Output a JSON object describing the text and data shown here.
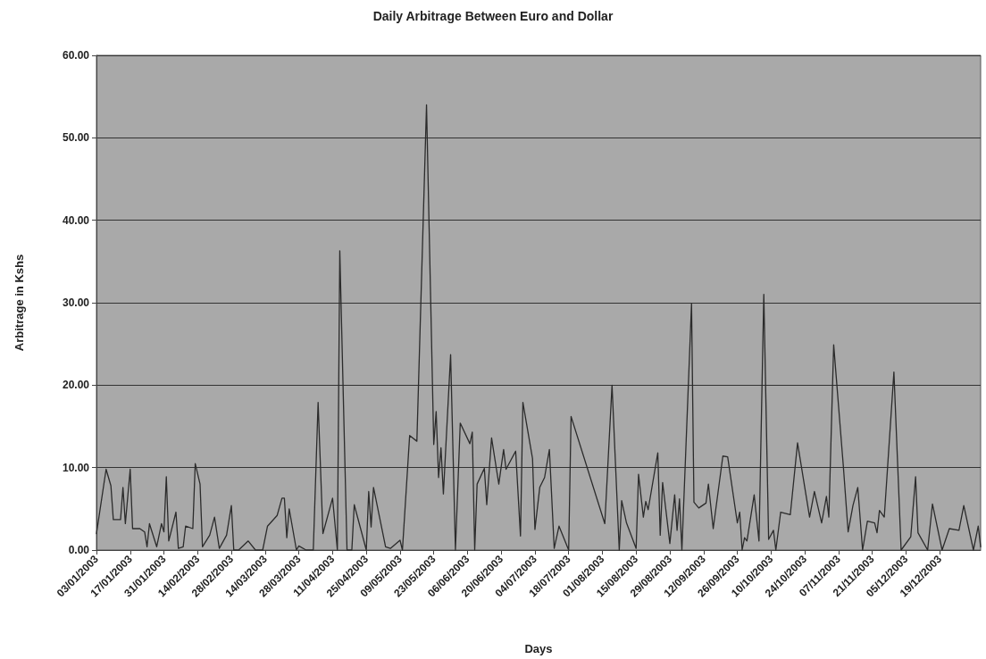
{
  "chart_data": {
    "type": "line",
    "title": "Daily Arbitrage Between Euro and Dollar",
    "xlabel": "Days",
    "ylabel": "Arbitrage in Kshs",
    "x": [
      "2003-01-03",
      "2003-01-07",
      "2003-01-09",
      "2003-01-10",
      "2003-01-13",
      "2003-01-14",
      "2003-01-15",
      "2003-01-17",
      "2003-01-18",
      "2003-01-21",
      "2003-01-23",
      "2003-01-24",
      "2003-01-25",
      "2003-01-28",
      "2003-01-30",
      "2003-01-31",
      "2003-02-01",
      "2003-02-02",
      "2003-02-05",
      "2003-02-06",
      "2003-02-08",
      "2003-02-09",
      "2003-02-12",
      "2003-02-13",
      "2003-02-15",
      "2003-02-16",
      "2003-02-19",
      "2003-02-21",
      "2003-02-23",
      "2003-02-26",
      "2003-02-28",
      "2003-03-01",
      "2003-03-03",
      "2003-03-07",
      "2003-03-10",
      "2003-03-13",
      "2003-03-15",
      "2003-03-19",
      "2003-03-21",
      "2003-03-22",
      "2003-03-23",
      "2003-03-24",
      "2003-03-27",
      "2003-03-28",
      "2003-03-31",
      "2003-04-03",
      "2003-04-05",
      "2003-04-07",
      "2003-04-11",
      "2003-04-13",
      "2003-04-14",
      "2003-04-17",
      "2003-04-19",
      "2003-04-20",
      "2003-04-25",
      "2003-04-26",
      "2003-04-27",
      "2003-04-28",
      "2003-05-03",
      "2003-05-05",
      "2003-05-09",
      "2003-05-10",
      "2003-05-13",
      "2003-05-16",
      "2003-05-20",
      "2003-05-23",
      "2003-05-24",
      "2003-05-25",
      "2003-05-26",
      "2003-05-27",
      "2003-05-30",
      "2003-06-01",
      "2003-06-03",
      "2003-06-07",
      "2003-06-08",
      "2003-06-09",
      "2003-06-10",
      "2003-06-13",
      "2003-06-14",
      "2003-06-16",
      "2003-06-19",
      "2003-06-21",
      "2003-06-22",
      "2003-06-26",
      "2003-06-28",
      "2003-06-29",
      "2003-07-03",
      "2003-07-04",
      "2003-07-06",
      "2003-07-08",
      "2003-07-10",
      "2003-07-12",
      "2003-07-14",
      "2003-07-18",
      "2003-07-19",
      "2003-08-02",
      "2003-08-05",
      "2003-08-08",
      "2003-08-09",
      "2003-08-11",
      "2003-08-15",
      "2003-08-16",
      "2003-08-18",
      "2003-08-19",
      "2003-08-20",
      "2003-08-24",
      "2003-08-25",
      "2003-08-26",
      "2003-08-29",
      "2003-08-31",
      "2003-09-01",
      "2003-09-02",
      "2003-09-03",
      "2003-09-07",
      "2003-09-08",
      "2003-09-10",
      "2003-09-13",
      "2003-09-14",
      "2003-09-16",
      "2003-09-20",
      "2003-09-22",
      "2003-09-26",
      "2003-09-27",
      "2003-09-28",
      "2003-09-29",
      "2003-09-30",
      "2003-10-03",
      "2003-10-05",
      "2003-10-07",
      "2003-10-09",
      "2003-10-11",
      "2003-10-12",
      "2003-10-14",
      "2003-10-18",
      "2003-10-21",
      "2003-10-26",
      "2003-10-28",
      "2003-10-31",
      "2003-11-02",
      "2003-11-03",
      "2003-11-05",
      "2003-11-09",
      "2003-11-11",
      "2003-11-13",
      "2003-11-15",
      "2003-11-17",
      "2003-11-19",
      "2003-11-22",
      "2003-11-23",
      "2003-11-24",
      "2003-11-26",
      "2003-11-30",
      "2003-12-03",
      "2003-12-07",
      "2003-12-09",
      "2003-12-10",
      "2003-12-14",
      "2003-12-16",
      "2003-12-20",
      "2003-12-23",
      "2003-12-27",
      "2003-12-29",
      "2004-01-02",
      "2004-01-04",
      "2004-01-05"
    ],
    "series": [
      {
        "color": "#2b2b2b",
        "values": [
          2.0,
          9.8,
          7.8,
          3.7,
          3.7,
          7.6,
          3.2,
          9.8,
          2.6,
          2.6,
          2.2,
          0.4,
          3.2,
          0.4,
          3.2,
          2.2,
          8.9,
          1.1,
          4.6,
          0.2,
          0.4,
          2.9,
          2.6,
          10.5,
          8.0,
          0.4,
          1.8,
          4.0,
          0.2,
          1.8,
          5.4,
          0,
          0,
          1.1,
          0,
          0,
          2.9,
          4.2,
          6.3,
          6.3,
          1.5,
          5.0,
          0,
          0.5,
          0,
          0,
          17.9,
          2.0,
          6.3,
          0,
          36.3,
          0,
          0,
          5.5,
          0,
          7.1,
          2.8,
          7.6,
          0.4,
          0.2,
          1.2,
          0,
          13.9,
          13.2,
          54,
          12.8,
          16.8,
          8.8,
          12.4,
          6.8,
          23.7,
          0,
          15.4,
          12.9,
          14.3,
          0,
          8.0,
          9.9,
          5.5,
          13.6,
          8.0,
          12.2,
          9.8,
          12.0,
          1.7,
          17.9,
          11.1,
          2.5,
          7.6,
          8.8,
          12.2,
          0.2,
          2.9,
          0,
          16.2,
          3.2,
          20,
          0,
          6.0,
          3.3,
          0.2,
          9.2,
          4.0,
          5.9,
          4.9,
          11.8,
          1.8,
          8.2,
          0.8,
          6.7,
          2.4,
          6.2,
          0,
          29.9,
          5.8,
          5.1,
          5.7,
          8.0,
          2.6,
          11.4,
          11.3,
          3.3,
          4.6,
          0,
          1.5,
          1.1,
          6.7,
          1.1,
          31,
          1.3,
          2.4,
          0,
          4.6,
          4.3,
          13,
          4.0,
          7.1,
          3.3,
          6.5,
          4.0,
          24.9,
          10.2,
          2.2,
          5.4,
          7.6,
          0,
          3.5,
          3.3,
          2.1,
          4.8,
          4.0,
          21.6,
          0,
          1.6,
          8.9,
          2.1,
          0,
          5.6,
          0,
          2.6,
          2.4,
          5.4,
          0,
          2.9,
          0.4
        ]
      }
    ],
    "xlim": [
      "2003-01-03",
      "2004-01-05"
    ],
    "xticks": [
      {
        "value": "2003-01-03",
        "label": "03/01/2003"
      },
      {
        "value": "2003-01-17",
        "label": "17/01/2003"
      },
      {
        "value": "2003-01-31",
        "label": "31/01/2003"
      },
      {
        "value": "2003-02-14",
        "label": "14/02/2003"
      },
      {
        "value": "2003-02-28",
        "label": "28/02/2003"
      },
      {
        "value": "2003-03-14",
        "label": "14/03/2003"
      },
      {
        "value": "2003-03-28",
        "label": "28/03/2003"
      },
      {
        "value": "2003-04-11",
        "label": "11/04/2003"
      },
      {
        "value": "2003-04-25",
        "label": "25/04/2003"
      },
      {
        "value": "2003-05-09",
        "label": "09/05/2003"
      },
      {
        "value": "2003-05-23",
        "label": "23/05/2003"
      },
      {
        "value": "2003-06-06",
        "label": "06/06/2003"
      },
      {
        "value": "2003-06-20",
        "label": "20/06/2003"
      },
      {
        "value": "2003-07-04",
        "label": "04/07/2003"
      },
      {
        "value": "2003-07-18",
        "label": "18/07/2003"
      },
      {
        "value": "2003-08-01",
        "label": "01/08/2003"
      },
      {
        "value": "2003-08-15",
        "label": "15/08/2003"
      },
      {
        "value": "2003-08-29",
        "label": "29/08/2003"
      },
      {
        "value": "2003-09-12",
        "label": "12/09/2003"
      },
      {
        "value": "2003-09-26",
        "label": "26/09/2003"
      },
      {
        "value": "2003-10-10",
        "label": "10/10/2003"
      },
      {
        "value": "2003-10-24",
        "label": "24/10/2003"
      },
      {
        "value": "2003-11-07",
        "label": "07/11/2003"
      },
      {
        "value": "2003-11-21",
        "label": "21/11/2003"
      },
      {
        "value": "2003-12-05",
        "label": "05/12/2003"
      },
      {
        "value": "2003-12-19",
        "label": "19/12/2003"
      }
    ],
    "ylim": [
      0,
      60
    ],
    "yticks": [
      {
        "value": 0,
        "label": "0.00"
      },
      {
        "value": 10,
        "label": "10.00"
      },
      {
        "value": 20,
        "label": "20.00"
      },
      {
        "value": 30,
        "label": "30.00"
      },
      {
        "value": 40,
        "label": "40.00"
      },
      {
        "value": 50,
        "label": "50.00"
      },
      {
        "value": 60,
        "label": "60.00"
      }
    ],
    "grid": "y",
    "marker": "none",
    "line_style": "solid"
  }
}
